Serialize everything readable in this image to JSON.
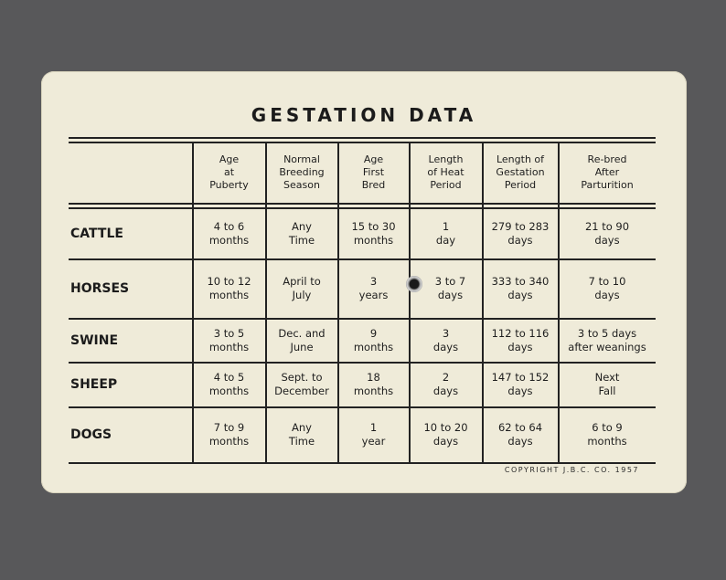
{
  "title": "GESTATION DATA",
  "columns": [
    "Age\nat\nPuberty",
    "Normal\nBreeding\nSeason",
    "Age\nFirst\nBred",
    "Length\nof Heat\nPeriod",
    "Length of\nGestation\nPeriod",
    "Re-bred\nAfter\nParturition"
  ],
  "rows": [
    {
      "label": "CATTLE",
      "cells": [
        "4 to 6\nmonths",
        "Any\nTime",
        "15 to 30\nmonths",
        "1\nday",
        "279 to 283\ndays",
        "21 to 90\ndays"
      ]
    },
    {
      "label": "HORSES",
      "cells": [
        "10 to 12\nmonths",
        "April to\nJuly",
        "3\nyears",
        "3 to 7\ndays",
        "333 to 340\ndays",
        "7 to 10\ndays"
      ]
    },
    {
      "label": "SWINE",
      "cells": [
        "3 to 5\nmonths",
        "Dec. and\nJune",
        "9\nmonths",
        "3\ndays",
        "112 to 116\ndays",
        "3 to 5 days\nafter weanings"
      ]
    },
    {
      "label": "SHEEP",
      "cells": [
        "4 to 5\nmonths",
        "Sept. to\nDecember",
        "18\nmonths",
        "2\ndays",
        "147 to 152\ndays",
        "Next\nFall"
      ]
    },
    {
      "label": "DOGS",
      "cells": [
        "7 to 9\nmonths",
        "Any\nTime",
        "1\nyear",
        "10 to 20\ndays",
        "62 to 64\ndays",
        "6 to 9\nmonths"
      ]
    }
  ],
  "copyright": "COPYRIGHT J.B.C. CO. 1957"
}
